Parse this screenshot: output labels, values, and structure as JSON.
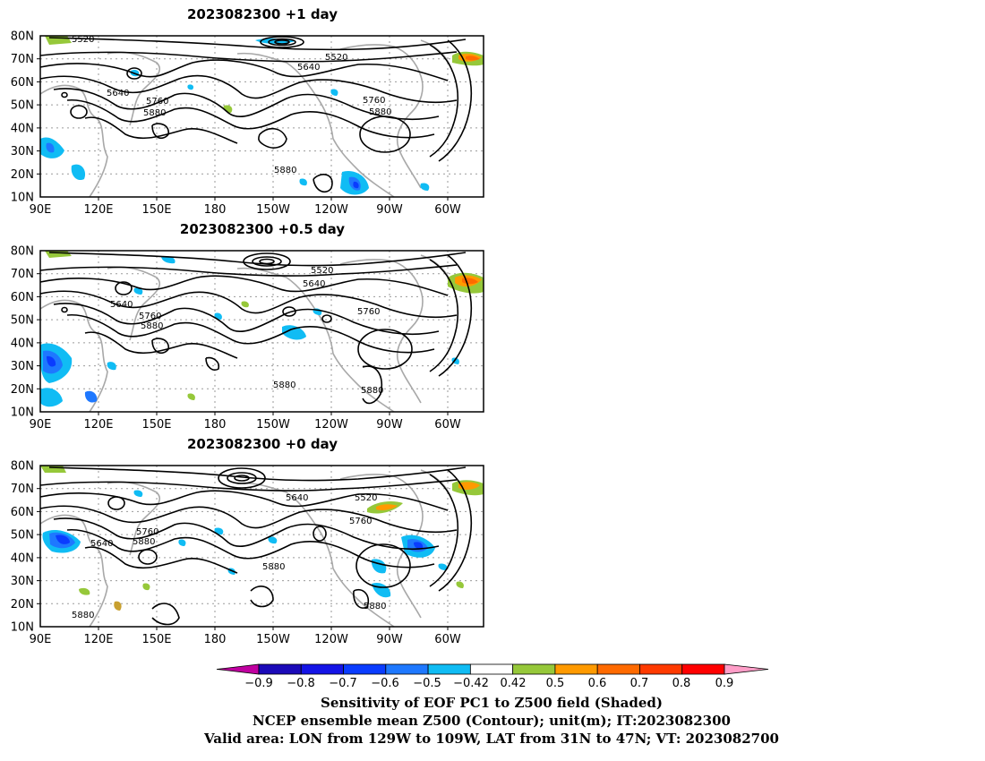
{
  "panels": [
    {
      "title": "2023082300  +1 day",
      "contour_labels": [
        "5520",
        "5520",
        "5640",
        "5640",
        "5760",
        "5760",
        "5880",
        "5880",
        "5880"
      ]
    },
    {
      "title": "2023082300  +0.5 day",
      "contour_labels": [
        "5520",
        "5640",
        "5640",
        "5760",
        "5760",
        "5880",
        "5880",
        "5880"
      ]
    },
    {
      "title": "2023082300  +0 day",
      "contour_labels": [
        "5520",
        "5640",
        "5640",
        "5760",
        "5760",
        "5880",
        "5880",
        "5880",
        "5880"
      ]
    }
  ],
  "axes": {
    "lon_labels": [
      "90E",
      "120E",
      "150E",
      "180",
      "150W",
      "120W",
      "90W",
      "60W"
    ],
    "lat_labels": [
      "10N",
      "20N",
      "30N",
      "40N",
      "50N",
      "60N",
      "70N",
      "80N"
    ]
  },
  "colorbar": {
    "tick_labels": [
      "−0.9",
      "−0.8",
      "−0.7",
      "−0.6",
      "−0.5",
      "−0.42",
      "0.42",
      "0.5",
      "0.6",
      "0.7",
      "0.8",
      "0.9"
    ],
    "colors": [
      "#c000a0",
      "#1b0ab8",
      "#1414e6",
      "#0a3cff",
      "#1e78ff",
      "#10bcf4",
      "#ffffff",
      "#96c83a",
      "#ff9a00",
      "#ff6a00",
      "#ff3a00",
      "#ff0000",
      "#ff9ec8"
    ]
  },
  "caption": {
    "line1": "Sensitivity of EOF PC1 to Z500 field (Shaded)",
    "line2": "NCEP ensemble mean Z500 (Contour); unit(m); IT:2023082300",
    "line3": "Valid area: LON from 129W to 109W, LAT from 31N to 47N; VT: 2023082700"
  }
}
